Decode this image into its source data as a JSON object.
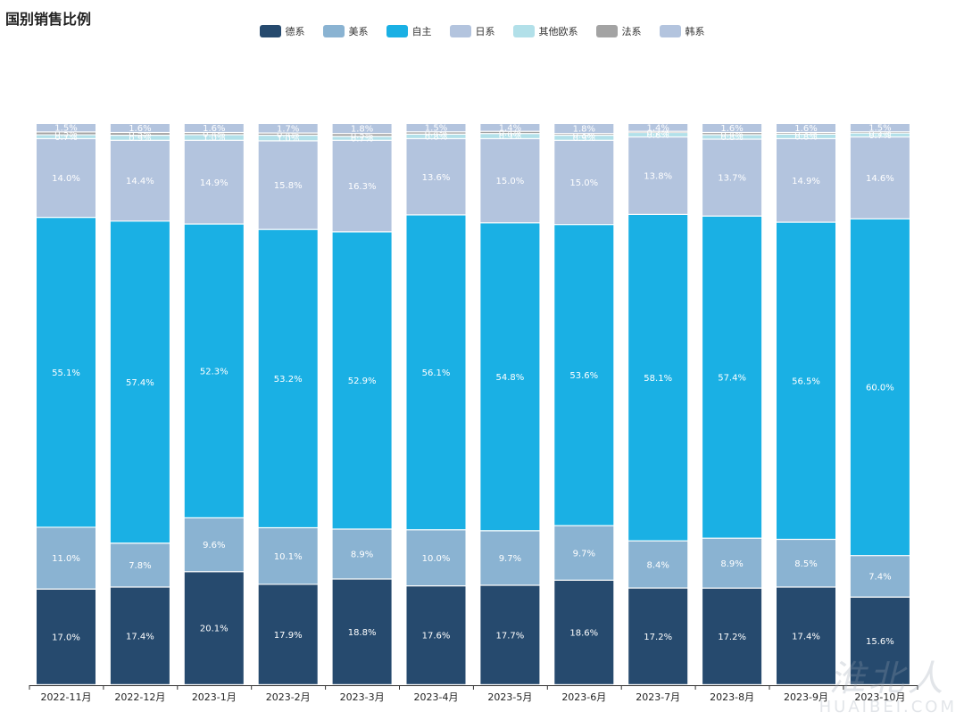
{
  "watermark": {
    "cn": "淮北人",
    "en": "HUAIBEI.COM"
  },
  "colors": {
    "德系": "#264a6e",
    "美系": "#8ab3d2",
    "自主": "#1ab0e4",
    "日系": "#b3c4de",
    "其他欧系": "#b2e0e9",
    "法系": "#a3a3a3",
    "韩系": "#b3c4de"
  },
  "chart_data": {
    "type": "bar",
    "stacked": true,
    "title": "国别销售比例",
    "legend_position": "top-center",
    "categories": [
      "2022-11月",
      "2022-12月",
      "2023-1月",
      "2023-2月",
      "2023-3月",
      "2023-4月",
      "2023-5月",
      "2023-6月",
      "2023-7月",
      "2023-8月",
      "2023-9月",
      "2023-10月"
    ],
    "series": [
      {
        "name": "德系",
        "values": [
          17.0,
          17.4,
          20.1,
          17.9,
          18.8,
          17.6,
          17.7,
          18.6,
          17.2,
          17.2,
          17.4,
          15.6
        ]
      },
      {
        "name": "美系",
        "values": [
          11.0,
          7.8,
          9.6,
          10.1,
          8.9,
          10.0,
          9.7,
          9.7,
          8.4,
          8.9,
          8.5,
          7.4
        ]
      },
      {
        "name": "自主",
        "values": [
          55.1,
          57.4,
          52.3,
          53.2,
          52.9,
          56.1,
          54.8,
          53.6,
          58.1,
          57.4,
          56.5,
          60.0
        ]
      },
      {
        "name": "日系",
        "values": [
          14.0,
          14.4,
          14.9,
          15.8,
          16.3,
          13.6,
          15.0,
          15.0,
          13.8,
          13.7,
          14.9,
          14.6
        ]
      },
      {
        "name": "其他欧系",
        "values": [
          0.7,
          0.9,
          1.0,
          1.0,
          0.7,
          0.8,
          0.9,
          0.9,
          0.8,
          0.8,
          0.8,
          0.7
        ]
      },
      {
        "name": "法系",
        "values": [
          0.5,
          0.5,
          0.4,
          0.4,
          0.5,
          0.4,
          0.4,
          0.3,
          0.2,
          0.4,
          0.3,
          0.2
        ]
      },
      {
        "name": "韩系",
        "values": [
          1.5,
          1.6,
          1.6,
          1.7,
          1.8,
          1.5,
          1.4,
          1.8,
          1.4,
          1.6,
          1.6,
          1.5
        ]
      }
    ],
    "value_suffix": "%"
  }
}
